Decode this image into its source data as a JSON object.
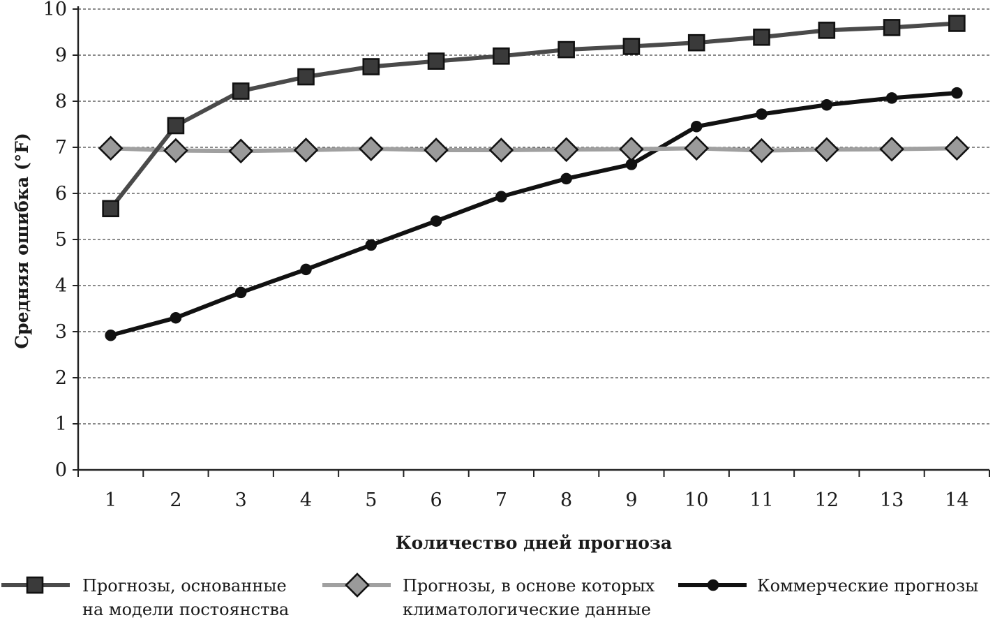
{
  "chart_data": {
    "type": "line",
    "title": "",
    "xlabel": "Количество дней прогноза",
    "ylabel": "Средняя ошибка (°F)",
    "x": [
      1,
      2,
      3,
      4,
      5,
      6,
      7,
      8,
      9,
      10,
      11,
      12,
      13,
      14
    ],
    "xticks": [
      "1",
      "2",
      "3",
      "4",
      "5",
      "6",
      "7",
      "8",
      "9",
      "10",
      "11",
      "12",
      "13",
      "14"
    ],
    "ylim": [
      0,
      10
    ],
    "yticks": [
      "0",
      "1",
      "2",
      "3",
      "4",
      "5",
      "6",
      "7",
      "8",
      "9",
      "10"
    ],
    "grid": "horizontal dashed",
    "legend_position": "bottom",
    "series": [
      {
        "name_lines": [
          "Прогнозы, основанные",
          "на модели постоянства"
        ],
        "marker": "square",
        "color": "#4a4a4a",
        "marker_fill": "#3a3a3a",
        "values": [
          5.67,
          7.47,
          8.22,
          8.53,
          8.75,
          8.87,
          8.98,
          9.12,
          9.19,
          9.27,
          9.39,
          9.54,
          9.6,
          9.69
        ]
      },
      {
        "name_lines": [
          "Прогнозы, в основе которых",
          "климатологические данные"
        ],
        "marker": "diamond",
        "color": "#a0a0a0",
        "marker_fill": "#9a9a9a",
        "values": [
          6.98,
          6.93,
          6.92,
          6.94,
          6.97,
          6.94,
          6.94,
          6.95,
          6.96,
          6.98,
          6.93,
          6.95,
          6.96,
          6.98
        ]
      },
      {
        "name_lines": [
          "Коммерческие прогнозы"
        ],
        "marker": "circle",
        "color": "#111111",
        "marker_fill": "#111111",
        "values": [
          2.92,
          3.3,
          3.85,
          4.35,
          4.88,
          5.4,
          5.93,
          6.32,
          6.63,
          7.45,
          7.72,
          7.92,
          8.07,
          8.18
        ]
      }
    ]
  }
}
